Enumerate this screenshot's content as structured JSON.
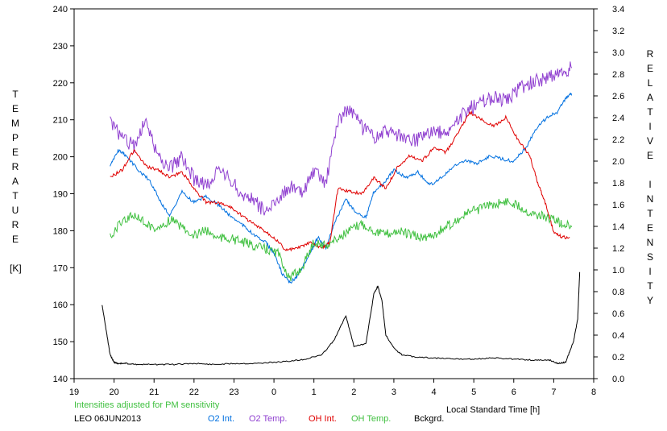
{
  "chart_data": {
    "type": "line",
    "title": "",
    "xlabel": "Local Standard Time [h]",
    "ylabel_left": "TEMPERATURE [K]",
    "ylabel_right": "RELATIVE INTENSITY",
    "left_label_lines": [
      "T",
      "E",
      "M",
      "P",
      "E",
      "R",
      "A",
      "T",
      "U",
      "R",
      "E",
      "",
      "[K]"
    ],
    "right_label_lines": [
      "R",
      "E",
      "L",
      "A",
      "T",
      "I",
      "V",
      "E",
      "",
      "I",
      "N",
      "T",
      "E",
      "N",
      "S",
      "I",
      "T",
      "Y"
    ],
    "x_ticks": [
      19,
      20,
      21,
      22,
      23,
      0,
      1,
      2,
      3,
      4,
      5,
      6,
      7,
      8
    ],
    "x_tick_labels": [
      "19",
      "20",
      "21",
      "22",
      "23",
      "0",
      "1",
      "2",
      "3",
      "4",
      "5",
      "6",
      "7",
      "8"
    ],
    "xlim": [
      19,
      32
    ],
    "ylim_left": [
      140,
      240
    ],
    "yticks_left": [
      140,
      150,
      160,
      170,
      180,
      190,
      200,
      210,
      220,
      230,
      240
    ],
    "ylim_right": [
      0.0,
      3.4
    ],
    "yticks_right": [
      "0.0",
      "0.2",
      "0.4",
      "0.6",
      "0.8",
      "1.0",
      "1.2",
      "1.4",
      "1.6",
      "1.8",
      "2.0",
      "2.2",
      "2.4",
      "2.6",
      "2.8",
      "3.0",
      "3.2",
      "3.4"
    ],
    "grid": false,
    "x_unit_note": "x values are hours; values after midnight continue past 24 (24 = 0 h, 31 = 7 h)",
    "series": [
      {
        "name": "O2 Int.",
        "axis": "right",
        "color": "#0070e0",
        "x": [
          19.9,
          20.1,
          20.3,
          20.6,
          20.9,
          21.2,
          21.4,
          21.7,
          22.0,
          22.3,
          22.6,
          22.9,
          23.2,
          23.5,
          23.8,
          24.0,
          24.2,
          24.4,
          24.6,
          24.9,
          25.1,
          25.3,
          25.5,
          25.8,
          26.0,
          26.3,
          26.5,
          26.8,
          27.0,
          27.3,
          27.6,
          27.9,
          28.2,
          28.5,
          28.8,
          29.1,
          29.4,
          29.7,
          30.0,
          30.3,
          30.6,
          30.9,
          31.1,
          31.3,
          31.45
        ],
        "values": [
          1.95,
          2.1,
          2.05,
          1.92,
          1.82,
          1.6,
          1.5,
          1.72,
          1.62,
          1.68,
          1.6,
          1.5,
          1.42,
          1.32,
          1.25,
          1.15,
          0.97,
          0.88,
          0.95,
          1.15,
          1.3,
          1.2,
          1.42,
          1.65,
          1.55,
          1.48,
          1.72,
          1.82,
          1.92,
          1.85,
          1.9,
          1.78,
          1.85,
          1.95,
          2.0,
          1.98,
          2.05,
          2.02,
          2.0,
          2.12,
          2.32,
          2.42,
          2.45,
          2.58,
          2.62
        ]
      },
      {
        "name": "O2 Temp.",
        "axis": "left",
        "color": "#9040d0",
        "x": [
          19.9,
          20.2,
          20.5,
          20.8,
          21.1,
          21.4,
          21.7,
          22.0,
          22.3,
          22.6,
          22.9,
          23.2,
          23.5,
          23.8,
          24.1,
          24.4,
          24.7,
          25.0,
          25.3,
          25.6,
          25.9,
          26.2,
          26.5,
          26.8,
          27.1,
          27.4,
          27.7,
          28.0,
          28.3,
          28.6,
          28.9,
          29.2,
          29.5,
          29.8,
          30.1,
          30.4,
          30.7,
          31.0,
          31.2,
          31.45
        ],
        "values": [
          210,
          205,
          203,
          210,
          200,
          197,
          200,
          194,
          192,
          196,
          194,
          190,
          188,
          185,
          189,
          192,
          190,
          196,
          193,
          210,
          213,
          208,
          205,
          207,
          206,
          204,
          205,
          207,
          206,
          210,
          213,
          215,
          216,
          215,
          218,
          220,
          221,
          222,
          223,
          224
        ]
      },
      {
        "name": "OH Int.",
        "axis": "right",
        "color": "#e00000",
        "x": [
          19.9,
          20.2,
          20.5,
          20.8,
          21.1,
          21.4,
          21.7,
          22.0,
          22.3,
          22.6,
          22.9,
          23.2,
          23.5,
          23.8,
          24.0,
          24.3,
          24.6,
          24.9,
          25.2,
          25.4,
          25.6,
          25.9,
          26.2,
          26.5,
          26.8,
          27.1,
          27.4,
          27.7,
          28.0,
          28.3,
          28.6,
          28.9,
          29.2,
          29.5,
          29.8,
          30.1,
          30.4,
          30.6,
          30.8,
          31.0,
          31.2,
          31.4
        ],
        "values": [
          1.85,
          1.92,
          2.1,
          1.95,
          1.92,
          1.85,
          1.9,
          1.75,
          1.62,
          1.62,
          1.58,
          1.5,
          1.42,
          1.35,
          1.3,
          1.18,
          1.2,
          1.25,
          1.2,
          1.25,
          1.75,
          1.72,
          1.7,
          1.85,
          1.75,
          1.95,
          2.05,
          2.0,
          2.12,
          2.08,
          2.25,
          2.45,
          2.38,
          2.32,
          2.4,
          2.2,
          2.05,
          1.8,
          1.6,
          1.35,
          1.3,
          1.3
        ]
      },
      {
        "name": "OH Temp.",
        "axis": "left",
        "color": "#40c040",
        "x": [
          19.9,
          20.2,
          20.5,
          20.8,
          21.1,
          21.4,
          21.7,
          22.0,
          22.3,
          22.6,
          22.9,
          23.2,
          23.5,
          23.8,
          24.1,
          24.4,
          24.7,
          25.0,
          25.3,
          25.6,
          25.9,
          26.2,
          26.5,
          26.8,
          27.1,
          27.4,
          27.7,
          28.0,
          28.3,
          28.6,
          28.9,
          29.2,
          29.5,
          29.8,
          30.1,
          30.4,
          30.7,
          31.0,
          31.2,
          31.45
        ],
        "values": [
          178,
          183,
          184,
          182,
          180,
          183,
          181,
          179,
          180,
          178,
          178,
          177,
          176,
          175,
          174,
          167,
          170,
          177,
          176,
          178,
          180,
          182,
          180,
          179,
          180,
          179,
          178,
          179,
          181,
          183,
          185,
          186,
          187,
          188,
          187,
          185,
          184,
          183,
          182,
          181
        ]
      },
      {
        "name": "Bckgrd.",
        "axis": "right",
        "color": "#000000",
        "x": [
          19.7,
          19.8,
          19.9,
          20.0,
          20.1,
          20.3,
          20.6,
          21.0,
          21.5,
          22.0,
          22.5,
          23.0,
          23.5,
          24.0,
          24.4,
          24.8,
          25.2,
          25.5,
          25.8,
          26.0,
          26.3,
          26.5,
          26.6,
          26.7,
          26.8,
          27.0,
          27.2,
          27.5,
          28.0,
          28.5,
          29.0,
          29.5,
          30.0,
          30.5,
          30.9,
          31.1,
          31.3,
          31.5,
          31.6,
          31.65
        ],
        "values": [
          0.68,
          0.45,
          0.22,
          0.15,
          0.14,
          0.14,
          0.13,
          0.13,
          0.13,
          0.14,
          0.13,
          0.14,
          0.14,
          0.15,
          0.16,
          0.18,
          0.22,
          0.35,
          0.58,
          0.3,
          0.32,
          0.78,
          0.85,
          0.72,
          0.4,
          0.28,
          0.22,
          0.2,
          0.19,
          0.18,
          0.18,
          0.19,
          0.18,
          0.17,
          0.17,
          0.14,
          0.15,
          0.35,
          0.55,
          0.98
        ]
      }
    ]
  },
  "footer": {
    "note": "Intensities adjusted for PM sensitivity",
    "note_color": "#40c040",
    "station": "LEO 06JUN2013",
    "legend": [
      {
        "label": "O2 Int.",
        "color": "#0070e0"
      },
      {
        "label": "O2 Temp.",
        "color": "#9040d0"
      },
      {
        "label": "OH Int.",
        "color": "#e00000"
      },
      {
        "label": "OH Temp.",
        "color": "#40c040"
      },
      {
        "label": "Bckgrd.",
        "color": "#000000"
      }
    ]
  }
}
